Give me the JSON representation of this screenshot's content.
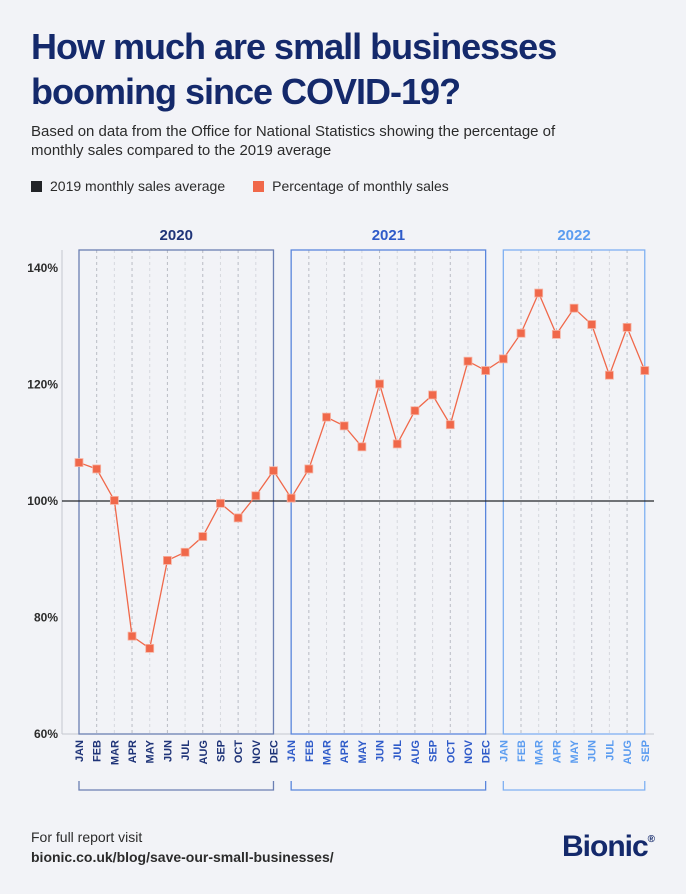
{
  "header": {
    "title": "How much are small businesses booming since COVID-19?",
    "subtitle": "Based on data from the Office for National Statistics showing the percentage of monthly sales compared to the 2019 average"
  },
  "legend": {
    "items": [
      {
        "label": "2019 monthly sales average",
        "color": "#222428"
      },
      {
        "label": "Percentage of monthly sales",
        "color": "#f0684a"
      }
    ]
  },
  "chart_data": {
    "type": "line",
    "ylim": [
      60,
      140
    ],
    "yticks": [
      "140%",
      "120%",
      "100%",
      "80%",
      "60%"
    ],
    "ytick_values": [
      140,
      120,
      100,
      80,
      60
    ],
    "reference_line": {
      "name": "2019 monthly sales average",
      "value": 100,
      "color": "#222428"
    },
    "groups": [
      {
        "year": "2020",
        "color": "#1f3478",
        "box_color": "#6b7fb3",
        "months": [
          "JAN",
          "FEB",
          "MAR",
          "APR",
          "MAY",
          "JUN",
          "JUL",
          "AUG",
          "SEP",
          "OCT",
          "NOV",
          "DEC"
        ],
        "values": [
          106.6,
          105.5,
          100.1,
          76.8,
          74.7,
          89.8,
          91.2,
          93.9,
          99.6,
          97.1,
          100.9,
          105.2
        ]
      },
      {
        "year": "2021",
        "color": "#2f5bc9",
        "box_color": "#5a86dc",
        "months": [
          "JAN",
          "FEB",
          "MAR",
          "APR",
          "MAY",
          "JUN",
          "JUL",
          "AUG",
          "SEP",
          "OCT",
          "NOV",
          "DEC"
        ],
        "values": [
          100.5,
          105.5,
          114.4,
          112.9,
          109.3,
          120.1,
          109.8,
          115.5,
          118.2,
          113.1,
          124.0,
          122.4
        ]
      },
      {
        "year": "2022",
        "color": "#5b9cf0",
        "box_color": "#7fb0f2",
        "months": [
          "JAN",
          "FEB",
          "MAR",
          "APR",
          "MAY",
          "JUN",
          "JUL",
          "AUG",
          "SEP"
        ],
        "values": [
          124.4,
          128.8,
          135.7,
          128.6,
          133.1,
          130.3,
          121.6,
          129.8,
          122.4
        ]
      }
    ],
    "series": [
      {
        "name": "Percentage of monthly sales",
        "color": "#f0684a"
      }
    ],
    "grid": "vertical dashed"
  },
  "footer": {
    "line1": "For full report visit",
    "link": "bionic.co.uk/blog/save-our-small-businesses/"
  },
  "logo": {
    "text": "Bionic",
    "mark": "®"
  }
}
